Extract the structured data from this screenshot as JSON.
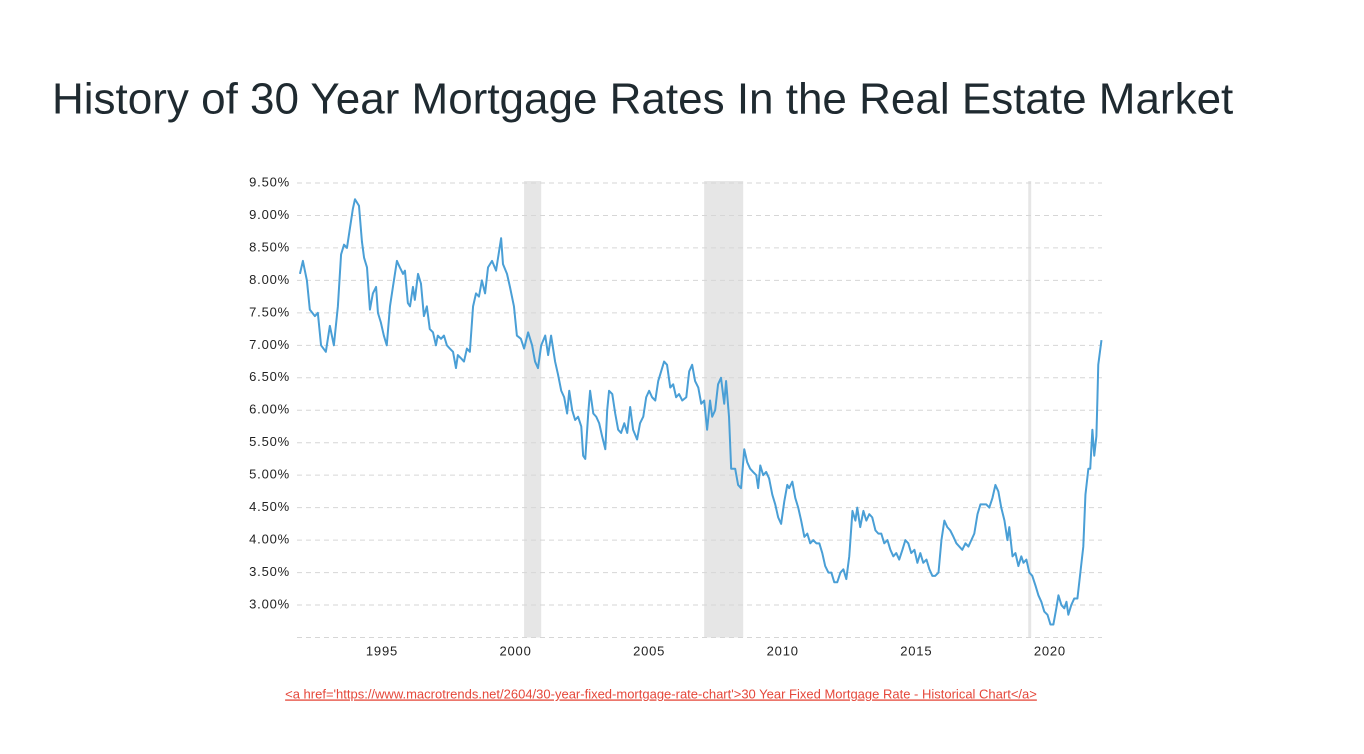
{
  "chart_data": {
    "type": "line",
    "title": "History of 30 Year Mortgage Rates In the Real Estate Market",
    "source": "<a href='https://www.macrotrends.net/2604/30-year-fixed-mortgage-rate-chart'>30 Year Fixed Mortgage Rate - Historical Chart</a>",
    "xlim": [
      1991.82,
      2021.95
    ],
    "xticks": [
      1995,
      2000,
      2005,
      2010,
      2015,
      2020
    ],
    "ylim": [
      2.5,
      9.5
    ],
    "yticks": [
      {
        "value": 3,
        "label": "3.00%"
      },
      {
        "value": 3.5,
        "label": "3.50%"
      },
      {
        "value": 4,
        "label": "4.00%"
      },
      {
        "value": 4.5,
        "label": "4.50%"
      },
      {
        "value": 5,
        "label": "5.00%"
      },
      {
        "value": 5.5,
        "label": "5.50%"
      },
      {
        "value": 6,
        "label": "6.00%"
      },
      {
        "value": 6.5,
        "label": "6.50%"
      },
      {
        "value": 7,
        "label": "7.00%"
      },
      {
        "value": 7.5,
        "label": "7.50%"
      },
      {
        "value": 8,
        "label": "8.00%"
      },
      {
        "value": 8.5,
        "label": "8.50%"
      },
      {
        "value": 9,
        "label": "9.00%"
      },
      {
        "value": 9.5,
        "label": "9.50%"
      }
    ],
    "grid": true,
    "shaded_ranges": [
      [
        2000.32,
        2000.96
      ],
      [
        2007.06,
        2008.52
      ],
      [
        2019.19,
        2019.3
      ]
    ],
    "shade_color": "#e6e6e6",
    "series": [
      {
        "color": "#4a9fd6",
        "x": [
          1991.93,
          1992.04,
          1992.19,
          1992.3,
          1992.49,
          1992.6,
          1992.72,
          1992.9,
          1993.05,
          1993.2,
          1993.35,
          1993.47,
          1993.58,
          1993.69,
          1993.8,
          1993.91,
          1993.99,
          1994.14,
          1994.25,
          1994.33,
          1994.44,
          1994.55,
          1994.66,
          1994.78,
          1994.85,
          1994.96,
          1995.07,
          1995.18,
          1995.3,
          1995.41,
          1995.56,
          1995.67,
          1995.79,
          1995.86,
          1995.97,
          1996.05,
          1996.16,
          1996.23,
          1996.35,
          1996.46,
          1996.57,
          1996.68,
          1996.79,
          1996.91,
          1997.02,
          1997.09,
          1997.21,
          1997.32,
          1997.43,
          1997.54,
          1997.66,
          1997.77,
          1997.84,
          1997.96,
          1998.07,
          1998.18,
          1998.29,
          1998.41,
          1998.52,
          1998.63,
          1998.74,
          1998.86,
          1998.97,
          1999.12,
          1999.27,
          1999.46,
          1999.53,
          1999.68,
          1999.79,
          1999.94,
          2000.05,
          2000.2,
          2000.32,
          2000.47,
          2000.62,
          2000.73,
          2000.84,
          2000.96,
          2001.11,
          2001.22,
          2001.33,
          2001.48,
          2001.59,
          2001.71,
          2001.82,
          2001.93,
          2002.01,
          2002.12,
          2002.23,
          2002.34,
          2002.46,
          2002.53,
          2002.61,
          2002.72,
          2002.79,
          2002.91,
          2003.02,
          2003.13,
          2003.24,
          2003.36,
          2003.43,
          2003.5,
          2003.62,
          2003.73,
          2003.84,
          2003.95,
          2004.07,
          2004.18,
          2004.29,
          2004.4,
          2004.55,
          2004.66,
          2004.78,
          2004.89,
          2005.0,
          2005.11,
          2005.23,
          2005.34,
          2005.45,
          2005.56,
          2005.67,
          2005.79,
          2005.9,
          2006.01,
          2006.12,
          2006.24,
          2006.39,
          2006.5,
          2006.61,
          2006.72,
          2006.84,
          2006.95,
          2007.06,
          2007.17,
          2007.28,
          2007.36,
          2007.47,
          2007.58,
          2007.69,
          2007.81,
          2007.88,
          2007.99,
          2008.07,
          2008.22,
          2008.33,
          2008.44,
          2008.56,
          2008.67,
          2008.78,
          2008.89,
          2009.01,
          2009.08,
          2009.16,
          2009.27,
          2009.38,
          2009.49,
          2009.61,
          2009.72,
          2009.83,
          2009.94,
          2010.06,
          2010.17,
          2010.24,
          2010.36,
          2010.47,
          2010.58,
          2010.69,
          2010.81,
          2010.92,
          2011.03,
          2011.14,
          2011.26,
          2011.37,
          2011.48,
          2011.59,
          2011.71,
          2011.82,
          2011.93,
          2012.04,
          2012.16,
          2012.27,
          2012.38,
          2012.49,
          2012.61,
          2012.72,
          2012.79,
          2012.9,
          2013.02,
          2013.13,
          2013.24,
          2013.35,
          2013.47,
          2013.58,
          2013.69,
          2013.8,
          2013.92,
          2014.03,
          2014.14,
          2014.25,
          2014.36,
          2014.48,
          2014.59,
          2014.7,
          2014.81,
          2014.93,
          2015.04,
          2015.15,
          2015.26,
          2015.38,
          2015.49,
          2015.6,
          2015.71,
          2015.83,
          2015.94,
          2016.05,
          2016.16,
          2016.27,
          2016.39,
          2016.5,
          2016.61,
          2016.72,
          2016.84,
          2016.95,
          2017.06,
          2017.17,
          2017.29,
          2017.4,
          2017.51,
          2017.62,
          2017.73,
          2017.85,
          2017.96,
          2018.07,
          2018.18,
          2018.3,
          2018.41,
          2018.48,
          2018.6,
          2018.71,
          2018.82,
          2018.93,
          2019.01,
          2019.12,
          2019.23,
          2019.34,
          2019.46,
          2019.57,
          2019.68,
          2019.79,
          2019.91,
          2020.02,
          2020.13,
          2020.24,
          2020.32,
          2020.43,
          2020.54,
          2020.62,
          2020.69,
          2020.8,
          2020.91,
          2021.03,
          2021.14,
          2021.25,
          2021.33,
          2021.44,
          2021.51,
          2021.59,
          2021.66,
          2021.74,
          2021.78,
          2021.81,
          2021.93
        ],
        "values": [
          8.1,
          8.3,
          8.0,
          7.55,
          7.45,
          7.5,
          7.0,
          6.9,
          7.3,
          7.0,
          7.6,
          8.4,
          8.55,
          8.5,
          8.8,
          9.1,
          9.25,
          9.15,
          8.6,
          8.35,
          8.2,
          7.55,
          7.8,
          7.9,
          7.5,
          7.35,
          7.15,
          7.0,
          7.6,
          7.9,
          8.3,
          8.2,
          8.1,
          8.15,
          7.65,
          7.6,
          7.9,
          7.7,
          8.1,
          7.95,
          7.45,
          7.6,
          7.25,
          7.2,
          7.0,
          7.15,
          7.1,
          7.15,
          7.0,
          6.95,
          6.9,
          6.65,
          6.85,
          6.8,
          6.75,
          6.95,
          6.9,
          7.6,
          7.8,
          7.75,
          8.0,
          7.8,
          8.2,
          8.3,
          8.15,
          8.65,
          8.25,
          8.1,
          7.9,
          7.6,
          7.15,
          7.1,
          6.95,
          7.2,
          7.0,
          6.75,
          6.65,
          7.0,
          7.15,
          6.85,
          7.15,
          6.75,
          6.55,
          6.3,
          6.2,
          5.95,
          6.3,
          6.0,
          5.85,
          5.9,
          5.75,
          5.3,
          5.25,
          5.95,
          6.3,
          5.95,
          5.9,
          5.8,
          5.6,
          5.4,
          6.0,
          6.3,
          6.25,
          5.95,
          5.7,
          5.65,
          5.8,
          5.65,
          6.05,
          5.7,
          5.55,
          5.8,
          5.9,
          6.2,
          6.3,
          6.2,
          6.15,
          6.45,
          6.6,
          6.75,
          6.7,
          6.35,
          6.4,
          6.2,
          6.25,
          6.15,
          6.2,
          6.6,
          6.7,
          6.45,
          6.35,
          6.1,
          6.15,
          5.7,
          6.15,
          5.9,
          6.0,
          6.4,
          6.5,
          6.1,
          6.45,
          5.9,
          5.1,
          5.1,
          4.85,
          4.8,
          5.4,
          5.2,
          5.1,
          5.05,
          5.0,
          4.8,
          5.15,
          5.0,
          5.05,
          4.95,
          4.7,
          4.55,
          4.35,
          4.25,
          4.6,
          4.85,
          4.8,
          4.9,
          4.65,
          4.5,
          4.3,
          4.05,
          4.1,
          3.95,
          4.0,
          3.95,
          3.95,
          3.8,
          3.6,
          3.5,
          3.5,
          3.35,
          3.35,
          3.5,
          3.55,
          3.4,
          3.75,
          4.45,
          4.3,
          4.5,
          4.2,
          4.45,
          4.3,
          4.4,
          4.35,
          4.15,
          4.1,
          4.1,
          3.95,
          4.0,
          3.85,
          3.75,
          3.8,
          3.7,
          3.85,
          4.0,
          3.95,
          3.8,
          3.85,
          3.65,
          3.8,
          3.65,
          3.7,
          3.55,
          3.45,
          3.45,
          3.5,
          4.0,
          4.3,
          4.2,
          4.15,
          4.05,
          3.95,
          3.9,
          3.85,
          3.95,
          3.9,
          4.0,
          4.1,
          4.4,
          4.55,
          4.55,
          4.55,
          4.5,
          4.65,
          4.85,
          4.75,
          4.5,
          4.3,
          4.0,
          4.2,
          3.75,
          3.8,
          3.6,
          3.75,
          3.65,
          3.7,
          3.5,
          3.45,
          3.3,
          3.15,
          3.05,
          2.9,
          2.85,
          2.7,
          2.7,
          2.95,
          3.15,
          3.0,
          2.95,
          3.05,
          2.85,
          3.0,
          3.1,
          3.1,
          3.5,
          3.9,
          4.7,
          5.1,
          5.1,
          5.7,
          5.3,
          5.6,
          6.2,
          6.7,
          7.08
        ]
      }
    ]
  }
}
